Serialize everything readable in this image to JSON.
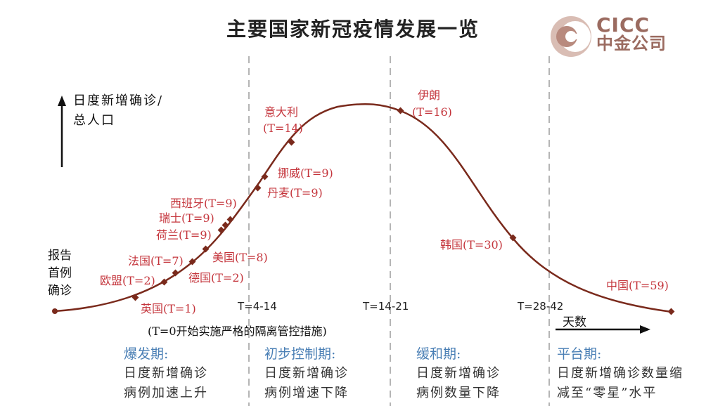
{
  "title": "主要国家新冠疫情发展一览",
  "logo": {
    "en": "CICC",
    "cn": "中金公司"
  },
  "y_axis_label": [
    "日度新增确诊/",
    "总人口"
  ],
  "start_label": [
    "报告",
    "首例",
    "确诊"
  ],
  "x_axis_label": "天数",
  "note": "(T=0开始实施严格的隔离管控措施)",
  "time_markers": [
    "T=4-14",
    "T=14-21",
    "T=28-42"
  ],
  "countries": [
    {
      "label": "英国(T=1)"
    },
    {
      "label": "欧盟(T=2)"
    },
    {
      "label": "法国(T=7)"
    },
    {
      "label": "德国(T=2)"
    },
    {
      "label": "美国(T=8)"
    },
    {
      "label": "荷兰(T=9)"
    },
    {
      "label": "瑞士(T=9)"
    },
    {
      "label": "西班牙(T=9)"
    },
    {
      "label": "丹麦(T=9)"
    },
    {
      "label": "挪威(T=9)"
    },
    {
      "label": "意大利"
    },
    {
      "label": "(T=14)"
    },
    {
      "label": "伊朗"
    },
    {
      "label": "(T=16)"
    },
    {
      "label": "韩国(T=30)"
    },
    {
      "label": "中国(T=59)"
    }
  ],
  "phases": [
    {
      "title": "爆发期:",
      "lines": [
        "日度新增确诊",
        "病例加速上升"
      ]
    },
    {
      "title": "初步控制期:",
      "lines": [
        "日度新增确诊",
        "病例增速下降"
      ]
    },
    {
      "title": "缓和期:",
      "lines": [
        "日度新增确诊",
        "病例数量下降"
      ]
    },
    {
      "title": "平台期:",
      "lines": [
        "日度新增确诊数量缩",
        "减至“零星”水平"
      ]
    }
  ],
  "colors": {
    "curve": "#7a2a1c",
    "country_text": "#c4343b",
    "phase_title": "#4a7fb5",
    "logo": "#9b6b60"
  }
}
